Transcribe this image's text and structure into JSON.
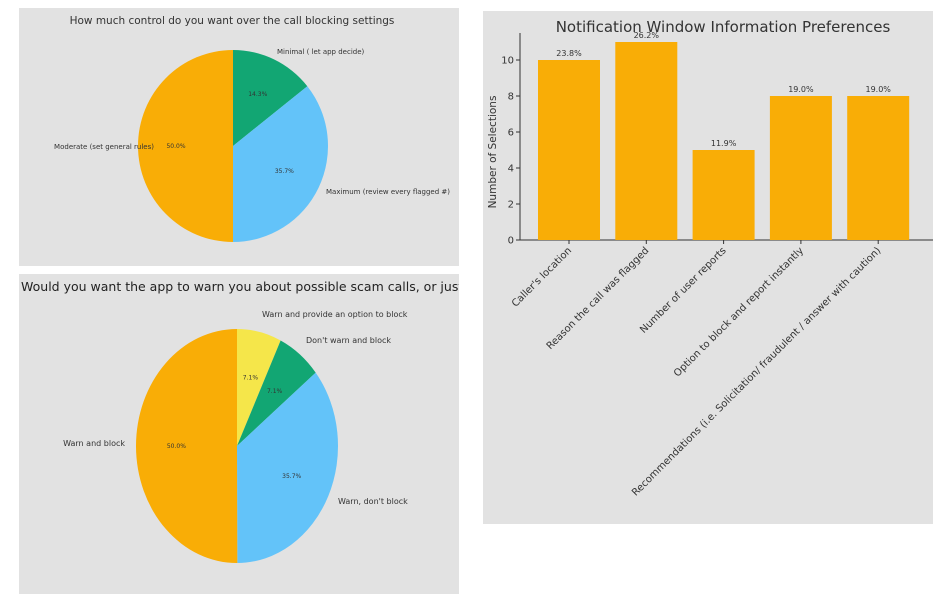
{
  "colors": {
    "orange": "#f9ad06",
    "light_blue": "#63c3f9",
    "green": "#12a673",
    "yellow": "#f5e64a",
    "panel_bg": "#e2e2e2",
    "text": "#333333"
  },
  "chart_data": [
    {
      "type": "pie",
      "title": "How much control do you want over the call blocking settings",
      "slices": [
        {
          "label": "Minimal ( let app decide)",
          "value": 14.3,
          "pct_label": "14.3%",
          "color": "#12a673"
        },
        {
          "label": "Maximum (review every flagged #)",
          "value": 35.7,
          "pct_label": "35.7%",
          "color": "#63c3f9"
        },
        {
          "label": "Moderate (set general rules)",
          "value": 50.0,
          "pct_label": "50.0%",
          "color": "#f9ad06"
        }
      ]
    },
    {
      "type": "pie",
      "title": "Would you want the app to warn you about possible scam calls, or just block them?",
      "slices": [
        {
          "label": "Warn and provide an option to block",
          "value": 7.1,
          "pct_label": "7.1%",
          "color": "#f5e64a"
        },
        {
          "label": "Don't warn and block",
          "value": 7.1,
          "pct_label": "7.1%",
          "color": "#12a673"
        },
        {
          "label": "Warn, don't block",
          "value": 35.7,
          "pct_label": "35.7%",
          "color": "#63c3f9"
        },
        {
          "label": "Warn and block",
          "value": 50.0,
          "pct_label": "50.0%",
          "color": "#f9ad06"
        }
      ]
    },
    {
      "type": "bar",
      "title": "Notification Window Information Preferences",
      "ylabel": "Number of Selections",
      "xlabel": "",
      "ylim": [
        0,
        11.5
      ],
      "yticks": [
        "0",
        "2",
        "4",
        "6",
        "8",
        "10"
      ],
      "categories": [
        "Caller's location",
        "Reason the call was flagged",
        "Number of user reports",
        "Option to block and report instantly",
        "Recommendations (i.e. Solicitation/ fraudulent / answer with caution)"
      ],
      "values": [
        10,
        11,
        5,
        8,
        8
      ],
      "data_labels": [
        "23.8%",
        "26.2%",
        "11.9%",
        "19.0%",
        "19.0%"
      ],
      "color": "#f9ad06",
      "grid": false
    }
  ]
}
